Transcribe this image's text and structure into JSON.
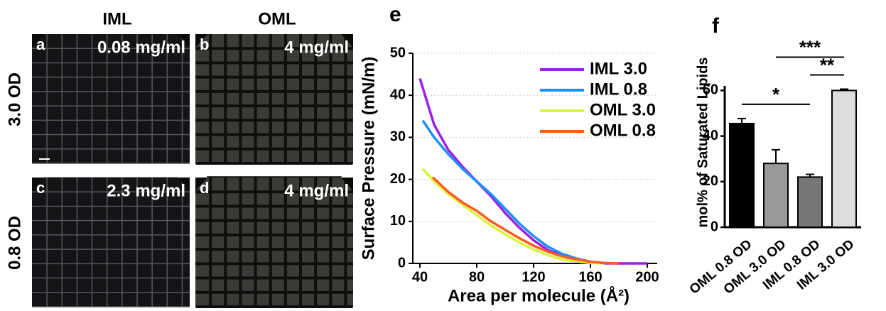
{
  "micrographs": {
    "column_headers": [
      "IML",
      "OML"
    ],
    "row_headers": [
      "3.0 OD",
      "0.8 OD"
    ],
    "panels": [
      {
        "letter": "a",
        "label": "0.08 mg/ml"
      },
      {
        "letter": "b",
        "label": "4 mg/ml"
      },
      {
        "letter": "c",
        "label": "2.3 mg/ml"
      },
      {
        "letter": "d",
        "label": "4 mg/ml"
      }
    ]
  },
  "chart_data": [
    {
      "type": "line",
      "panel_label": "e",
      "x_label": "Area per molecule (Å²)",
      "y_label": "Surface Pressure (mN/m)",
      "xlim": [
        35,
        207
      ],
      "xticks": [
        40,
        80,
        120,
        160,
        200
      ],
      "ylim": [
        0,
        50
      ],
      "yticks": [
        0,
        10,
        20,
        30,
        40,
        50
      ],
      "grid": true,
      "series": [
        {
          "name": "IML 3.0",
          "color": "#9b1fe8",
          "x": [
            40,
            50,
            60,
            70,
            80,
            90,
            100,
            110,
            120,
            130,
            140,
            150,
            160,
            170,
            200
          ],
          "values": [
            44,
            33,
            27,
            23,
            19.5,
            16,
            12,
            8.5,
            5.5,
            3.2,
            1.8,
            0.8,
            0.2,
            0,
            0
          ]
        },
        {
          "name": "IML 0.8",
          "color": "#1e8fff",
          "x": [
            42,
            50,
            60,
            70,
            80,
            90,
            100,
            110,
            120,
            130,
            140,
            150,
            160,
            170
          ],
          "values": [
            34,
            30,
            26,
            22.5,
            19.5,
            16.5,
            13,
            9.5,
            6.5,
            4,
            2.3,
            1.2,
            0.4,
            0
          ]
        },
        {
          "name": "OML 3.0",
          "color": "#d8f53a",
          "x": [
            42,
            50,
            60,
            70,
            80,
            90,
            100,
            110,
            120,
            130,
            140,
            150,
            160,
            170
          ],
          "values": [
            22.5,
            19.5,
            16.5,
            14,
            11.5,
            9,
            7,
            5,
            3.3,
            2,
            1,
            0.5,
            0.1,
            0
          ]
        },
        {
          "name": "OML 0.8",
          "color": "#ff5a1f",
          "x": [
            49,
            60,
            70,
            80,
            90,
            100,
            110,
            120,
            130,
            140,
            150,
            160,
            170,
            180
          ],
          "values": [
            20.5,
            17,
            14.5,
            12.5,
            10,
            8,
            6,
            4.2,
            2.8,
            1.7,
            1,
            0.4,
            0.1,
            0
          ]
        }
      ]
    },
    {
      "type": "bar",
      "panel_label": "f",
      "y_label": "mol% of Saturated Lipids",
      "categories": [
        "OML 0.8 OD",
        "OML 3.0 OD",
        "IML 0.8 OD",
        "IML 3.0 OD"
      ],
      "values": [
        45.5,
        28,
        22,
        60
      ],
      "errors": [
        2.2,
        6,
        1.2,
        0.6
      ],
      "colors": [
        "#000000",
        "#9a9a9a",
        "#777777",
        "#dddddd"
      ],
      "ylim": [
        0,
        62
      ],
      "yticks": [
        0,
        20,
        40,
        60
      ],
      "annotations": [
        {
          "text": "*",
          "from": 0,
          "to": 2
        },
        {
          "text": "**",
          "from": 2,
          "to": 3
        },
        {
          "text": "***",
          "from": 1,
          "to": 3
        }
      ]
    }
  ]
}
